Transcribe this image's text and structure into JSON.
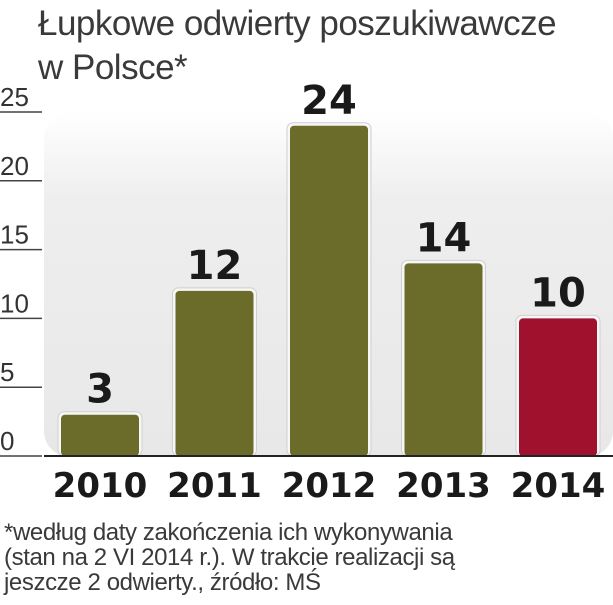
{
  "chart_data": {
    "type": "bar",
    "title_line1": "Łupkowe odwierty poszukiwawcze",
    "title_line2": "w Polsce*",
    "categories": [
      "2010",
      "2011",
      "2012",
      "2013",
      "2014"
    ],
    "values": [
      3,
      12,
      24,
      14,
      10
    ],
    "data_labels": [
      "3",
      "12",
      "24",
      "14",
      "10"
    ],
    "bar_colors": [
      "#6b6b2a",
      "#6b6b2a",
      "#6b6b2a",
      "#6b6b2a",
      "#a0112e"
    ],
    "ylim": [
      0,
      25
    ],
    "yticks": [
      "0",
      "5",
      "10",
      "15",
      "20",
      "25"
    ],
    "grid": false,
    "xlabel": "",
    "ylabel": ""
  },
  "footnote": {
    "line1": "*według daty zakończenia ich wykonywania",
    "line2": "(stan na 2 VI 2014 r.). W trakcie realizacji są",
    "line3": "jeszcze 2 odwierty., źródło: MŚ"
  },
  "colors": {
    "background_panel": "#ebebeb",
    "text": "#3a3a3a",
    "axis": "#222222"
  }
}
